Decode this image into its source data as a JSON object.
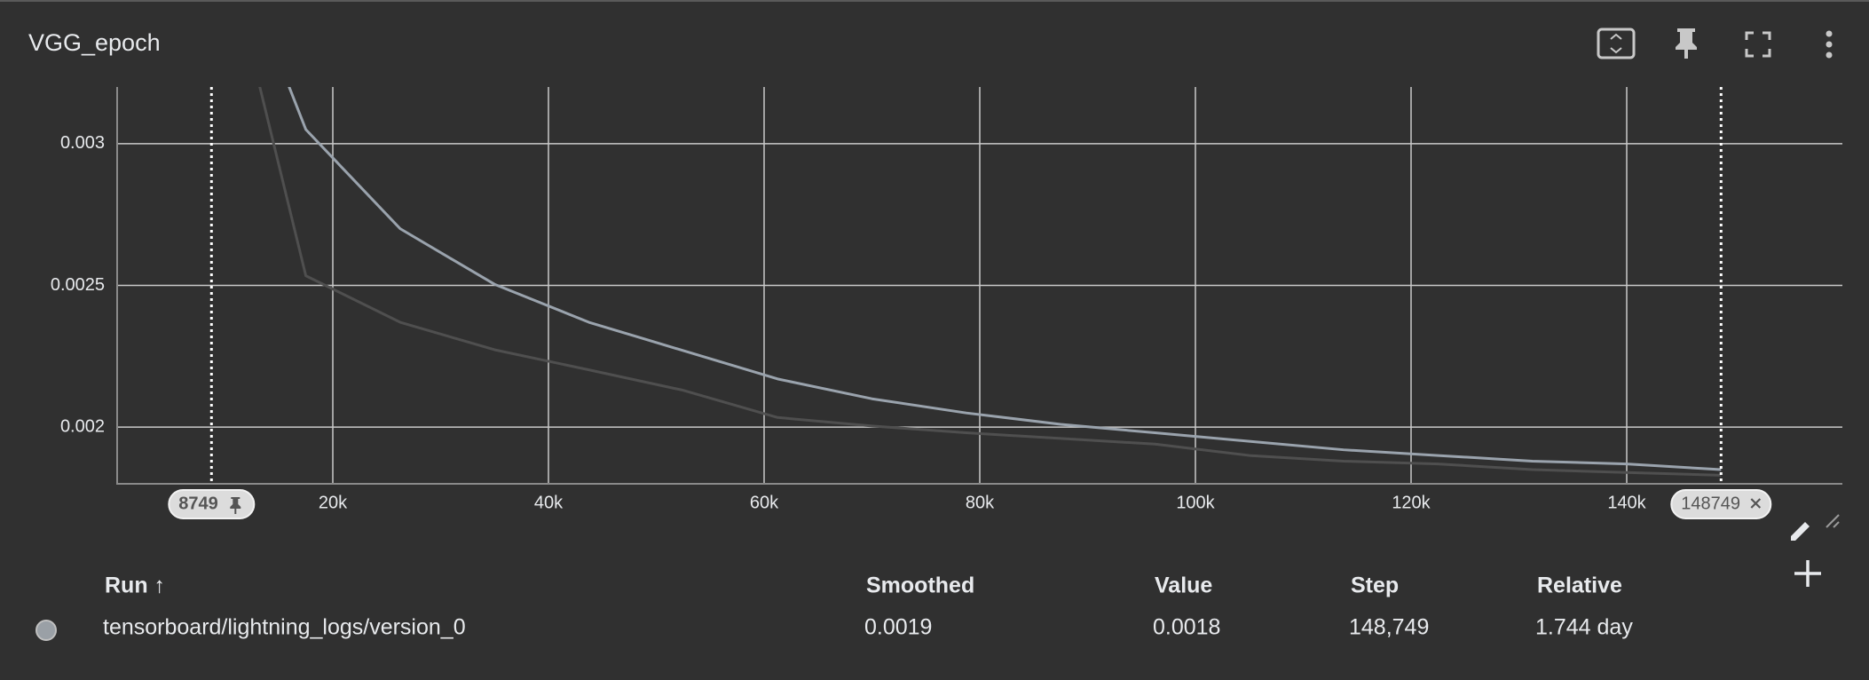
{
  "card": {
    "title": "VGG_epoch"
  },
  "chart_data": {
    "type": "line",
    "x": [
      8749,
      17499,
      26249,
      34999,
      43749,
      52499,
      61249,
      69999,
      78749,
      87499,
      96249,
      104999,
      113749,
      122499,
      131249,
      139999,
      148749
    ],
    "series": [
      {
        "color": "#4f4f4f",
        "values": [
          0.0039,
          0.002534,
          0.00237,
          0.002273,
          0.002202,
          0.00213,
          0.002034,
          0.002004,
          0.00198,
          0.00196,
          0.00194,
          0.0019,
          0.00188,
          0.00187,
          0.00185,
          0.00184,
          0.00183
        ]
      },
      {
        "color": "#9aa3ad",
        "values": [
          0.0039,
          0.00305,
          0.0027,
          0.002504,
          0.00237,
          0.00227,
          0.00217,
          0.0021,
          0.00205,
          0.00201,
          0.00198,
          0.00195,
          0.00192,
          0.0019,
          0.00188,
          0.00187,
          0.00185
        ]
      }
    ],
    "xlim": [
      0,
      160000
    ],
    "xticks": [
      {
        "value": 20000,
        "label": "20k"
      },
      {
        "value": 40000,
        "label": "40k"
      },
      {
        "value": 60000,
        "label": "60k"
      },
      {
        "value": 80000,
        "label": "80k"
      },
      {
        "value": 100000,
        "label": "100k"
      },
      {
        "value": 120000,
        "label": "120k"
      },
      {
        "value": 140000,
        "label": "140k"
      }
    ],
    "ylim": [
      0.0018,
      0.0032
    ],
    "yticks": [
      0.002,
      0.0025,
      0.003
    ],
    "grid": true,
    "step_markers": [
      8749,
      148749
    ]
  },
  "table": {
    "headers": [
      "Run ↑",
      "Smoothed",
      "Value",
      "Step",
      "Relative"
    ],
    "rows": [
      [
        "tensorboard/lightning_logs/version_0",
        "0.0019",
        "0.0018",
        "148,749",
        "1.744 day"
      ]
    ]
  }
}
